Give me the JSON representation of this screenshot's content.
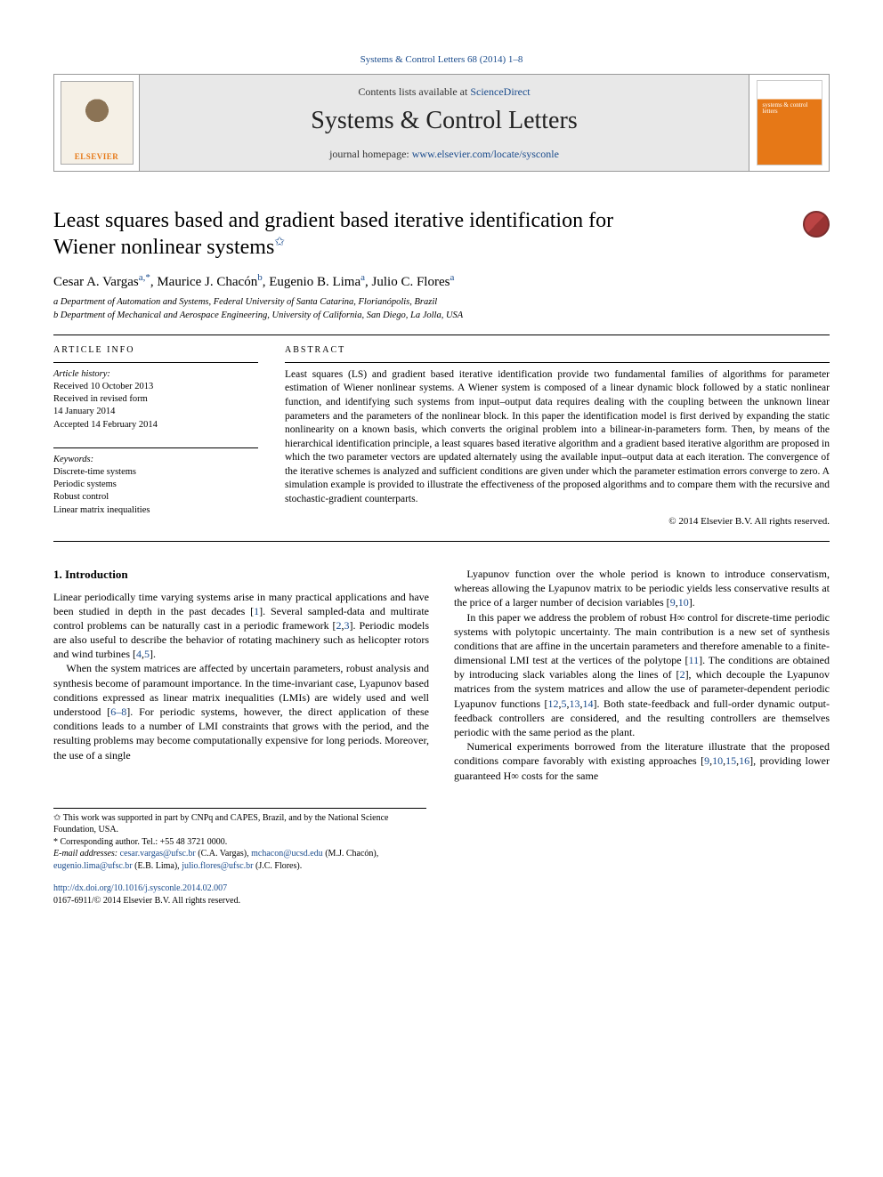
{
  "citation": {
    "journal": "Systems & Control Letters",
    "ref": "68 (2014) 1–8"
  },
  "banner": {
    "contents_prefix": "Contents lists available at ",
    "contents_link": "ScienceDirect",
    "journal": "Systems & Control Letters",
    "homepage_label": "journal homepage: ",
    "homepage_url": "www.elsevier.com/locate/sysconle",
    "cover_label": "systems & control letters"
  },
  "title": {
    "line1": "Least squares based and gradient based iterative identification for",
    "line2": "Wiener nonlinear systems",
    "star": "✩"
  },
  "authors": "Cesar A. Vargas<sup>a,*</sup>, Maurice J. Chacón<sup>b</sup>, Eugenio B. Lima<sup>a</sup>, Julio C. Flores<sup>a</sup>",
  "affiliations": {
    "a": "a Department of Automation and Systems, Federal University of Santa Catarina, Florianópolis, Brazil",
    "b": "b Department of Mechanical and Aerospace Engineering, University of California, San Diego, La Jolla, USA"
  },
  "info": {
    "heading": "ARTICLE INFO",
    "history_label": "Article history:",
    "received": "Received 10 October 2013",
    "revised": "Received in revised form",
    "revised_date": "14 January 2014",
    "accepted": "Accepted 14 February 2014",
    "kw_label": "Keywords:",
    "kw1": "Discrete-time systems",
    "kw2": "Periodic systems",
    "kw3": "Robust control",
    "kw4": "Linear matrix inequalities"
  },
  "abstract": {
    "heading": "ABSTRACT",
    "text": "Least squares (LS) and gradient based iterative identification provide two fundamental families of algorithms for parameter estimation of Wiener nonlinear systems. A Wiener system is composed of a linear dynamic block followed by a static nonlinear function, and identifying such systems from input–output data requires dealing with the coupling between the unknown linear parameters and the parameters of the nonlinear block. In this paper the identification model is first derived by expanding the static nonlinearity on a known basis, which converts the original problem into a bilinear-in-parameters form. Then, by means of the hierarchical identification principle, a least squares based iterative algorithm and a gradient based iterative algorithm are proposed in which the two parameter vectors are updated alternately using the available input–output data at each iteration. The convergence of the iterative schemes is analyzed and sufficient conditions are given under which the parameter estimation errors converge to zero. A simulation example is provided to illustrate the effectiveness of the proposed algorithms and to compare them with the recursive and stochastic-gradient counterparts.",
    "copyright": "© 2014 Elsevier B.V. All rights reserved."
  },
  "body": {
    "sec_num": "1.",
    "sec_title": "Introduction",
    "col1_p1": "Linear periodically time varying systems arise in many practical applications and have been studied in depth in the past decades [<span class='cite'>1</span>]. Several sampled-data and multirate control problems can be naturally cast in a periodic framework [<span class='cite'>2</span>,<span class='cite'>3</span>]. Periodic models are also useful to describe the behavior of rotating machinery such as helicopter rotors and wind turbines [<span class='cite'>4</span>,<span class='cite'>5</span>].",
    "col1_p2": "When the system matrices are affected by uncertain parameters, robust analysis and synthesis become of paramount importance. In the time-invariant case, Lyapunov based conditions expressed as linear matrix inequalities (LMIs) are widely used and well understood [<span class='cite'>6–8</span>]. For periodic systems, however, the direct application of these conditions leads to a number of LMI constraints that grows with the period, and the resulting problems may become computationally expensive for long periods. Moreover, the use of a single",
    "col2_p1": "Lyapunov function over the whole period is known to introduce conservatism, whereas allowing the Lyapunov matrix to be periodic yields less conservative results at the price of a larger number of decision variables [<span class='cite'>9</span>,<span class='cite'>10</span>].",
    "col2_p2": "In this paper we address the problem of robust H∞ control for discrete-time periodic systems with polytopic uncertainty. The main contribution is a new set of synthesis conditions that are affine in the uncertain parameters and therefore amenable to a finite-dimensional LMI test at the vertices of the polytope [<span class='cite'>11</span>]. The conditions are obtained by introducing slack variables along the lines of [<span class='cite'>2</span>], which decouple the Lyapunov matrices from the system matrices and allow the use of parameter-dependent periodic Lyapunov functions [<span class='cite'>12</span>,<span class='cite'>5</span>,<span class='cite'>13</span>,<span class='cite'>14</span>]. Both state-feedback and full-order dynamic output-feedback controllers are considered, and the resulting controllers are themselves periodic with the same period as the plant.",
    "col2_p3": "Numerical experiments borrowed from the literature illustrate that the proposed conditions compare favorably with existing approaches [<span class='cite'>9</span>,<span class='cite'>10</span>,<span class='cite'>15</span>,<span class='cite'>16</span>], providing lower guaranteed H∞ costs for the same"
  },
  "footnotes": {
    "star": "✩ This work was supported in part by CNPq and CAPES, Brazil, and by the National Science Foundation, USA.",
    "corr": "* Corresponding author. Tel.: +55 48 3721 0000.",
    "emails_label": "E-mail addresses: ",
    "e1": "cesar.vargas@ufsc.br",
    "e1_who": " (C.A. Vargas), ",
    "e2": "mchacon@ucsd.edu",
    "e2_who": " (M.J. Chacón), ",
    "e3": "eugenio.lima@ufsc.br",
    "e3_who": " (E.B. Lima), ",
    "e4": "julio.flores@ufsc.br",
    "e4_who": " (J.C. Flores)."
  },
  "doi": {
    "url": "http://dx.doi.org/10.1016/j.sysconle.2014.02.007",
    "issn": "0167-6911/© 2014 Elsevier B.V. All rights reserved."
  }
}
